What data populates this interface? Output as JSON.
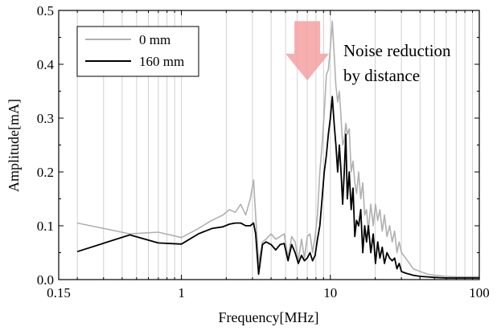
{
  "chart_data": {
    "type": "line",
    "xlabel": "Frequency[MHz]",
    "ylabel": "Amplitude[mA]",
    "x_scale": "log",
    "xlim": [
      0.15,
      100
    ],
    "ylim": [
      0,
      0.5
    ],
    "x_ticks": [
      {
        "value": 0.15,
        "label": "0.15"
      },
      {
        "value": 1,
        "label": "1"
      },
      {
        "value": 10,
        "label": "10"
      },
      {
        "value": 100,
        "label": "100"
      }
    ],
    "y_ticks": [
      {
        "value": 0.0,
        "label": "0.0"
      },
      {
        "value": 0.1,
        "label": "0.1"
      },
      {
        "value": 0.2,
        "label": "0.2"
      },
      {
        "value": 0.3,
        "label": "0.3"
      },
      {
        "value": 0.4,
        "label": "0.4"
      },
      {
        "value": 0.5,
        "label": "0.5"
      }
    ],
    "grid": "vertical log gridlines",
    "legend_position": "top-left",
    "annotation": {
      "lines": [
        "Noise reduction",
        "by distance"
      ],
      "color": "#ff0000",
      "arrow_color": "#f4a0a0",
      "arrow_x": 7.0,
      "arrow_y_top": 0.48,
      "arrow_y_bottom": 0.37
    },
    "series": [
      {
        "name": "0 mm",
        "color": "#b0b0b0",
        "x": [
          0.2,
          0.45,
          0.7,
          1.0,
          1.3,
          1.6,
          1.9,
          2.1,
          2.3,
          2.5,
          2.7,
          2.9,
          3.05,
          3.15,
          3.3,
          3.5,
          3.7,
          4.0,
          4.3,
          4.6,
          4.9,
          5.2,
          5.5,
          5.8,
          6.1,
          6.4,
          6.7,
          7.0,
          7.3,
          7.6,
          7.9,
          8.2,
          8.5,
          8.8,
          9.1,
          9.4,
          9.7,
          10.0,
          10.3,
          10.6,
          10.9,
          11.2,
          11.5,
          11.8,
          12.1,
          12.4,
          12.7,
          13.0,
          13.4,
          13.8,
          14.2,
          14.6,
          15.0,
          15.5,
          16.0,
          16.5,
          17.0,
          17.5,
          18.0,
          18.7,
          19.4,
          20.1,
          20.8,
          21.5,
          22.3,
          23.1,
          24.0,
          25.0,
          26.0,
          27.0,
          28.0,
          29.0,
          30.0,
          32.0,
          34.0,
          36.0,
          40.0,
          45.0,
          50.0,
          60.0,
          70.0,
          80.0,
          100.0
        ],
        "values": [
          0.105,
          0.085,
          0.088,
          0.078,
          0.095,
          0.11,
          0.12,
          0.13,
          0.125,
          0.14,
          0.12,
          0.15,
          0.185,
          0.12,
          0.03,
          0.07,
          0.075,
          0.085,
          0.075,
          0.08,
          0.085,
          0.04,
          0.08,
          0.07,
          0.035,
          0.075,
          0.04,
          0.08,
          0.085,
          0.05,
          0.08,
          0.12,
          0.2,
          0.25,
          0.31,
          0.38,
          0.39,
          0.43,
          0.48,
          0.42,
          0.36,
          0.33,
          0.35,
          0.3,
          0.25,
          0.26,
          0.29,
          0.27,
          0.28,
          0.2,
          0.22,
          0.18,
          0.16,
          0.2,
          0.15,
          0.18,
          0.12,
          0.13,
          0.09,
          0.14,
          0.1,
          0.14,
          0.11,
          0.13,
          0.09,
          0.12,
          0.08,
          0.1,
          0.07,
          0.09,
          0.05,
          0.07,
          0.05,
          0.04,
          0.03,
          0.02,
          0.015,
          0.01,
          0.008,
          0.006,
          0.005,
          0.005,
          0.005
        ]
      },
      {
        "name": "160 mm",
        "color": "#000000",
        "x": [
          0.2,
          0.45,
          0.7,
          1.0,
          1.3,
          1.6,
          1.9,
          2.1,
          2.3,
          2.5,
          2.7,
          2.9,
          3.05,
          3.15,
          3.3,
          3.5,
          3.7,
          4.0,
          4.3,
          4.6,
          4.9,
          5.2,
          5.5,
          5.8,
          6.1,
          6.4,
          6.7,
          7.0,
          7.3,
          7.6,
          7.9,
          8.2,
          8.5,
          8.8,
          9.1,
          9.4,
          9.7,
          10.0,
          10.3,
          10.6,
          10.9,
          11.2,
          11.5,
          11.8,
          12.1,
          12.4,
          12.7,
          13.0,
          13.4,
          13.8,
          14.2,
          14.6,
          15.0,
          15.5,
          16.0,
          16.5,
          17.0,
          17.5,
          18.0,
          18.7,
          19.4,
          20.1,
          20.8,
          21.5,
          22.3,
          23.1,
          24.0,
          25.0,
          26.0,
          27.0,
          28.0,
          29.0,
          30.0,
          32.0,
          34.0,
          36.0,
          40.0,
          45.0,
          50.0,
          60.0,
          70.0,
          80.0,
          100.0
        ],
        "values": [
          0.052,
          0.083,
          0.068,
          0.066,
          0.085,
          0.095,
          0.098,
          0.103,
          0.105,
          0.105,
          0.1,
          0.1,
          0.105,
          0.085,
          0.01,
          0.065,
          0.07,
          0.065,
          0.055,
          0.065,
          0.067,
          0.035,
          0.065,
          0.05,
          0.03,
          0.045,
          0.035,
          0.04,
          0.05,
          0.035,
          0.045,
          0.075,
          0.1,
          0.15,
          0.2,
          0.23,
          0.27,
          0.3,
          0.34,
          0.29,
          0.25,
          0.2,
          0.25,
          0.2,
          0.14,
          0.2,
          0.27,
          0.15,
          0.2,
          0.13,
          0.17,
          0.08,
          0.11,
          0.1,
          0.13,
          0.05,
          0.1,
          0.07,
          0.1,
          0.05,
          0.085,
          0.03,
          0.07,
          0.04,
          0.06,
          0.03,
          0.05,
          0.04,
          0.035,
          0.04,
          0.02,
          0.03,
          0.015,
          0.012,
          0.01,
          0.008,
          0.006,
          0.005,
          0.004,
          0.003,
          0.003,
          0.003,
          0.003
        ]
      }
    ]
  }
}
